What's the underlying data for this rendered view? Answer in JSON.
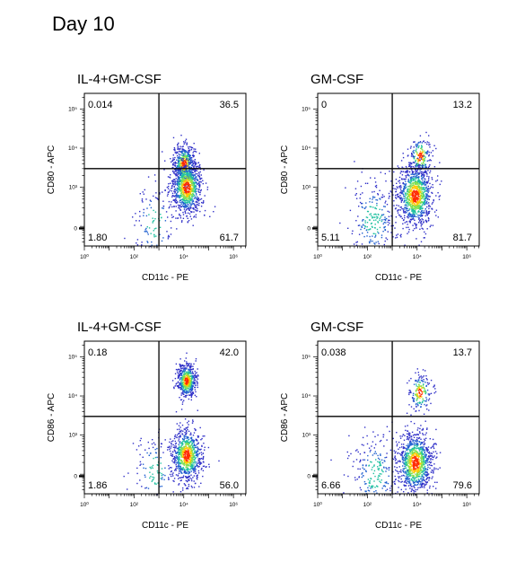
{
  "figure_title": "Day 10",
  "chart_data": [
    {
      "type": "scatter",
      "title": "IL-4+GM-CSF",
      "xlabel": "CD11c - PE",
      "ylabel": "CD80 - APC",
      "x_ticks": [
        "10⁰",
        "10²",
        "10⁴",
        "10⁶"
      ],
      "y_ticks": [
        "10⁵",
        "10⁴",
        "10³",
        "0"
      ],
      "gate": {
        "x": 1000,
        "y": 3000
      },
      "quadrants": {
        "top_left": "0.014",
        "top_right": "36.5",
        "bottom_left": "1.80",
        "bottom_right": "61.7"
      },
      "populations": [
        {
          "x_log10": 4.0,
          "y_log10": 3.6,
          "spread": 0.25,
          "n": 500
        },
        {
          "x_log10": 4.1,
          "y_log10": 3.0,
          "spread": 0.35,
          "n": 900
        },
        {
          "x_log10": 2.8,
          "y_log10": 2.1,
          "spread": 0.5,
          "n": 120
        }
      ]
    },
    {
      "type": "scatter",
      "title": "GM-CSF",
      "xlabel": "CD11c - PE",
      "ylabel": "CD80 - APC",
      "x_ticks": [
        "10⁰",
        "10²",
        "10⁴",
        "10⁶"
      ],
      "y_ticks": [
        "10⁵",
        "10⁴",
        "10³",
        "0"
      ],
      "gate": {
        "x": 1000,
        "y": 3000
      },
      "quadrants": {
        "top_left": "0",
        "top_right": "13.2",
        "bottom_left": "5.11",
        "bottom_right": "81.7"
      },
      "populations": [
        {
          "x_log10": 4.1,
          "y_log10": 3.8,
          "spread": 0.25,
          "n": 180
        },
        {
          "x_log10": 3.9,
          "y_log10": 2.8,
          "spread": 0.4,
          "n": 1000
        },
        {
          "x_log10": 2.2,
          "y_log10": 2.2,
          "spread": 0.55,
          "n": 250
        }
      ]
    },
    {
      "type": "scatter",
      "title": "IL-4+GM-CSF",
      "xlabel": "CD11c - PE",
      "ylabel": "CD86 - APC",
      "x_ticks": [
        "10⁰",
        "10²",
        "10⁴",
        "10⁶"
      ],
      "y_ticks": [
        "10⁵",
        "10⁴",
        "10³",
        "0"
      ],
      "gate": {
        "x": 1000,
        "y": 3000
      },
      "quadrants": {
        "top_left": "0.18",
        "top_right": "42.0",
        "bottom_left": "1.86",
        "bottom_right": "56.0"
      },
      "populations": [
        {
          "x_log10": 4.1,
          "y_log10": 4.4,
          "spread": 0.22,
          "n": 550
        },
        {
          "x_log10": 4.1,
          "y_log10": 2.5,
          "spread": 0.35,
          "n": 800
        },
        {
          "x_log10": 2.8,
          "y_log10": 2.1,
          "spread": 0.5,
          "n": 120
        }
      ]
    },
    {
      "type": "scatter",
      "title": "GM-CSF",
      "xlabel": "CD11c - PE",
      "ylabel": "CD86 - APC",
      "x_ticks": [
        "10⁰",
        "10²",
        "10⁴",
        "10⁶"
      ],
      "y_ticks": [
        "10⁵",
        "10⁴",
        "10³",
        "0"
      ],
      "gate": {
        "x": 1000,
        "y": 3000
      },
      "quadrants": {
        "top_left": "0.038",
        "top_right": "13.7",
        "bottom_left": "6.66",
        "bottom_right": "79.6"
      },
      "populations": [
        {
          "x_log10": 4.1,
          "y_log10": 4.1,
          "spread": 0.25,
          "n": 180
        },
        {
          "x_log10": 3.9,
          "y_log10": 2.3,
          "spread": 0.4,
          "n": 1000
        },
        {
          "x_log10": 2.3,
          "y_log10": 2.0,
          "spread": 0.55,
          "n": 250
        }
      ]
    }
  ]
}
